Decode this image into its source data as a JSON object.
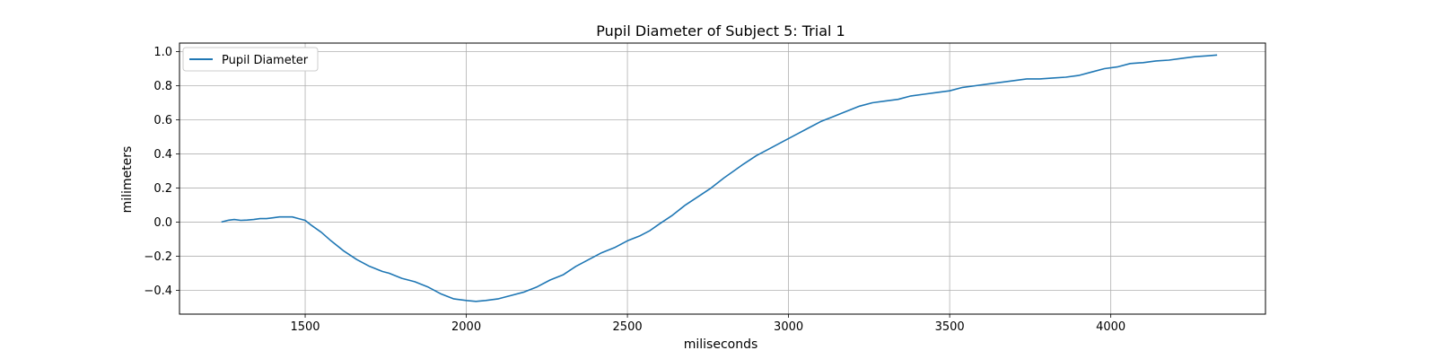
{
  "chart_data": {
    "type": "line",
    "title": "Pupil Diameter of Subject 5: Trial 1",
    "xlabel": "miliseconds",
    "ylabel": "milimeters",
    "xlim": [
      1110,
      4480
    ],
    "ylim": [
      -0.54,
      1.05
    ],
    "xticks": [
      1500,
      2000,
      2500,
      3000,
      3500,
      4000
    ],
    "yticks": [
      -0.4,
      -0.2,
      0.0,
      0.2,
      0.4,
      0.6,
      0.8,
      1.0
    ],
    "ytick_labels": [
      "−0.4",
      "−0.2",
      "0.0",
      "0.2",
      "0.4",
      "0.6",
      "0.8",
      "1.0"
    ],
    "grid": true,
    "legend": {
      "position": "top-left",
      "entries": [
        "Pupil Diameter"
      ]
    },
    "series": [
      {
        "name": "Pupil Diameter",
        "color": "#1f77b4",
        "x": [
          1240,
          1260,
          1280,
          1300,
          1320,
          1340,
          1360,
          1380,
          1400,
          1420,
          1440,
          1460,
          1480,
          1500,
          1520,
          1550,
          1580,
          1620,
          1660,
          1700,
          1740,
          1760,
          1800,
          1840,
          1880,
          1920,
          1960,
          2000,
          2030,
          2060,
          2100,
          2140,
          2180,
          2220,
          2260,
          2300,
          2340,
          2380,
          2420,
          2460,
          2500,
          2540,
          2570,
          2600,
          2640,
          2680,
          2720,
          2760,
          2800,
          2830,
          2860,
          2900,
          2940,
          2980,
          3020,
          3060,
          3100,
          3140,
          3180,
          3220,
          3260,
          3300,
          3340,
          3380,
          3420,
          3460,
          3500,
          3540,
          3580,
          3620,
          3660,
          3700,
          3740,
          3780,
          3820,
          3860,
          3900,
          3940,
          3980,
          4020,
          4060,
          4100,
          4140,
          4180,
          4220,
          4260,
          4300,
          4330
        ],
        "y": [
          0.0,
          0.01,
          0.015,
          0.01,
          0.012,
          0.015,
          0.02,
          0.02,
          0.025,
          0.03,
          0.03,
          0.03,
          0.02,
          0.01,
          -0.02,
          -0.06,
          -0.11,
          -0.17,
          -0.22,
          -0.26,
          -0.29,
          -0.3,
          -0.33,
          -0.35,
          -0.38,
          -0.42,
          -0.45,
          -0.46,
          -0.465,
          -0.46,
          -0.45,
          -0.43,
          -0.41,
          -0.38,
          -0.34,
          -0.31,
          -0.26,
          -0.22,
          -0.18,
          -0.15,
          -0.11,
          -0.08,
          -0.05,
          -0.01,
          0.04,
          0.1,
          0.15,
          0.2,
          0.26,
          0.3,
          0.34,
          0.39,
          0.43,
          0.47,
          0.51,
          0.55,
          0.59,
          0.62,
          0.65,
          0.68,
          0.7,
          0.71,
          0.72,
          0.74,
          0.75,
          0.76,
          0.77,
          0.79,
          0.8,
          0.81,
          0.82,
          0.83,
          0.84,
          0.84,
          0.845,
          0.85,
          0.86,
          0.88,
          0.9,
          0.91,
          0.93,
          0.935,
          0.945,
          0.95,
          0.96,
          0.97,
          0.975,
          0.98
        ]
      }
    ]
  }
}
